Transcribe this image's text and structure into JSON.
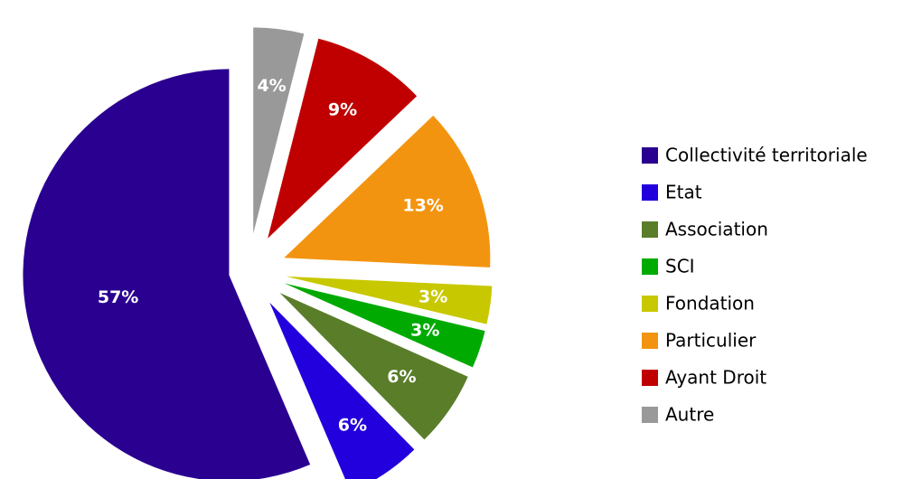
{
  "chart_data": {
    "type": "pie",
    "categories": [
      "Collectivité territoriale",
      "Etat",
      "Association",
      "SCI",
      "Fondation",
      "Particulier",
      "Ayant Droit",
      "Autre"
    ],
    "values": [
      57,
      6,
      6,
      3,
      3,
      13,
      9,
      4
    ],
    "value_labels": [
      "57%",
      "6%",
      "6%",
      "3%",
      "3%",
      "13%",
      "9%",
      "4%"
    ],
    "colors": [
      "#2a0090",
      "#2200dd",
      "#5a7d2a",
      "#00aa00",
      "#c8c800",
      "#f39410",
      "#c00000",
      "#999999"
    ],
    "legend": "right"
  }
}
